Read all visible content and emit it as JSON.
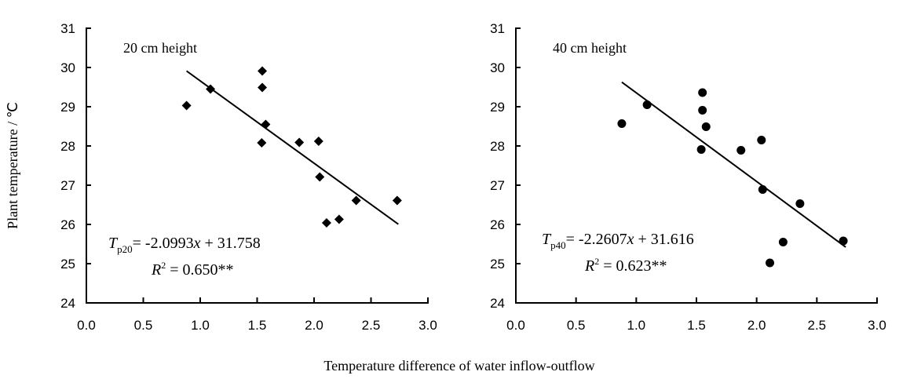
{
  "chart_data": [
    {
      "type": "scatter",
      "annotation_title": "20 cm height",
      "ylabel": "Plant temperature / ℃",
      "xlabel": "Temperature difference of water inflow-outflow",
      "xlim": [
        0.0,
        3.0
      ],
      "ylim": [
        24,
        31
      ],
      "xticks": [
        "0.0",
        "0.5",
        "1.0",
        "1.5",
        "2.0",
        "2.5",
        "3.0"
      ],
      "yticks": [
        "24",
        "25",
        "26",
        "27",
        "28",
        "29",
        "30",
        "31"
      ],
      "marker": "diamond",
      "grid": false,
      "x": [
        0.88,
        1.09,
        1.545,
        1.545,
        1.575,
        1.54,
        1.87,
        2.04,
        2.05,
        2.11,
        2.22,
        2.37,
        2.73
      ],
      "y": [
        29.03,
        29.45,
        29.91,
        29.49,
        28.55,
        28.08,
        28.09,
        28.12,
        27.21,
        26.04,
        26.13,
        26.61,
        26.61
      ],
      "trendline": {
        "slope": -2.0993,
        "intercept": 31.758,
        "x_range": [
          0.88,
          2.74
        ]
      },
      "equation": {
        "T": "T",
        "sub": "p20",
        "rhs": "= -2.0993",
        "x": "x",
        "rest": " + 31.758",
        "r": "R",
        "sup": "2",
        "r2": " = 0.650**"
      }
    },
    {
      "type": "scatter",
      "annotation_title": "40 cm height",
      "xlim": [
        0.0,
        3.0
      ],
      "ylim": [
        24,
        31
      ],
      "xticks": [
        "0.0",
        "0.5",
        "1.0",
        "1.5",
        "2.0",
        "2.5",
        "3.0"
      ],
      "yticks": [
        "24",
        "25",
        "26",
        "27",
        "28",
        "29",
        "30",
        "31"
      ],
      "marker": "circle",
      "grid": false,
      "x": [
        0.88,
        1.09,
        1.55,
        1.55,
        1.58,
        1.54,
        1.87,
        2.04,
        2.05,
        2.11,
        2.22,
        2.36,
        2.72
      ],
      "y": [
        28.57,
        29.05,
        29.36,
        28.91,
        28.49,
        27.91,
        27.89,
        28.15,
        26.89,
        25.02,
        25.55,
        26.53,
        25.58
      ],
      "trendline": {
        "slope": -2.2607,
        "intercept": 31.616,
        "x_range": [
          0.88,
          2.74
        ]
      },
      "equation": {
        "T": "T",
        "sub": "p40",
        "rhs": "= -2.2607",
        "x": "x",
        "rest": " + 31.616",
        "r": "R",
        "sup": "2",
        "r2": " = 0.623**"
      }
    }
  ]
}
